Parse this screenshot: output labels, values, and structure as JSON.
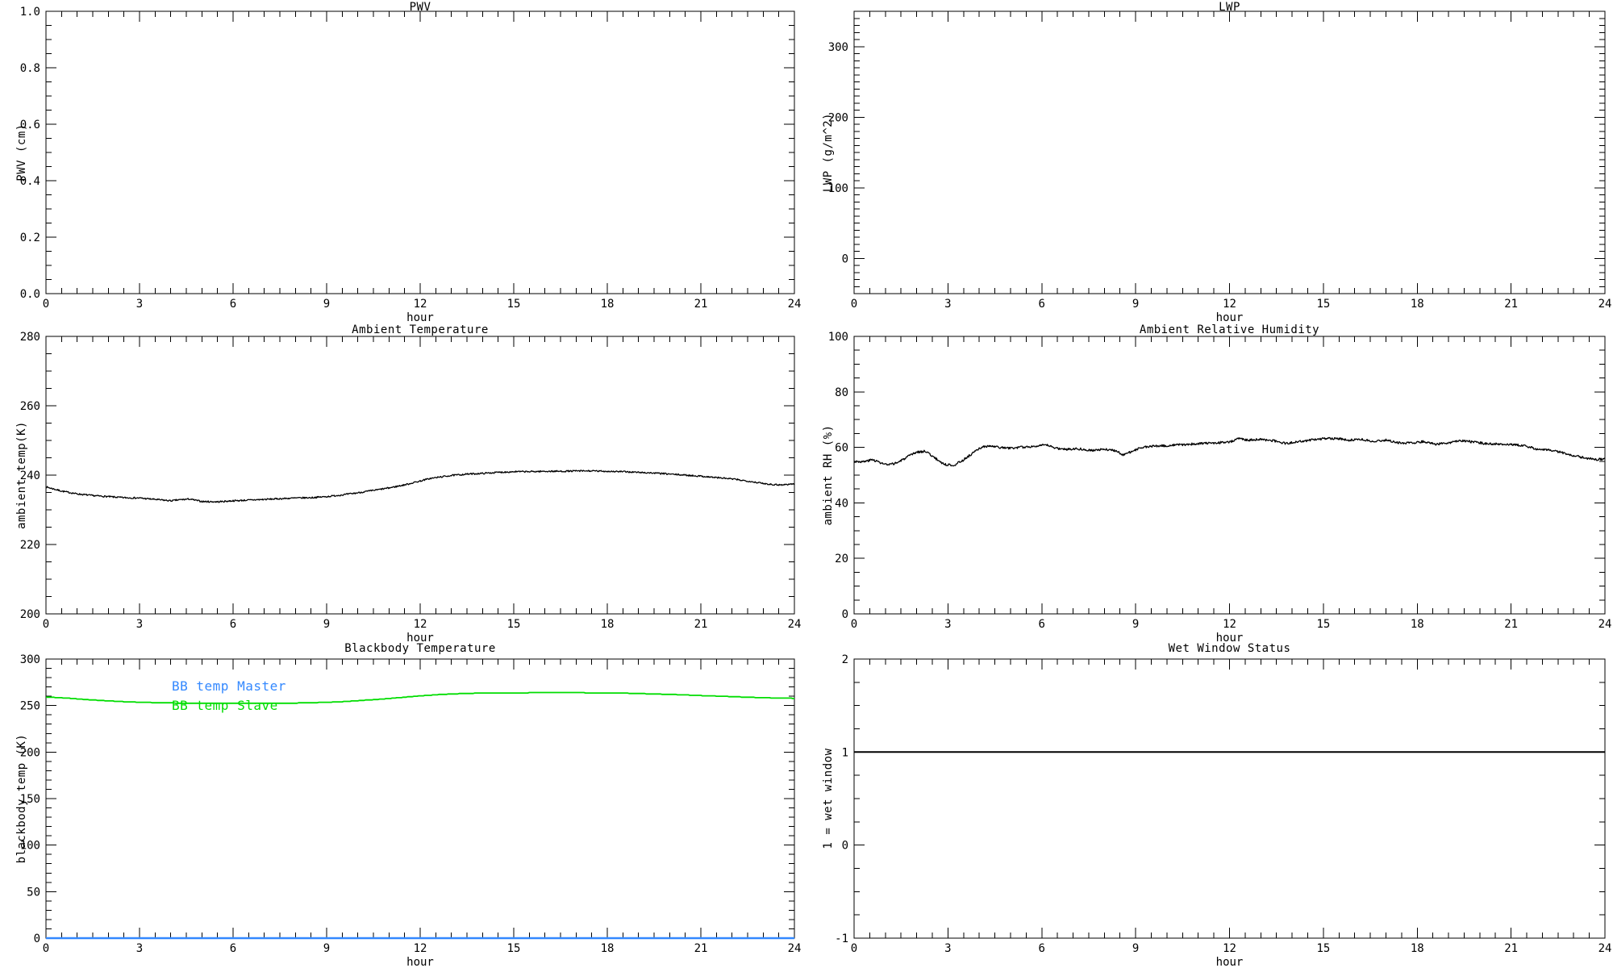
{
  "page": {
    "background": "#ffffff",
    "axis_color": "#000000"
  },
  "chart_data": [
    {
      "id": "pwv",
      "type": "line",
      "title": "PWV",
      "xlabel": "hour",
      "ylabel": "PWV (cm)",
      "xlim": [
        0,
        24
      ],
      "xticks": [
        0,
        3,
        6,
        9,
        12,
        15,
        18,
        21,
        24
      ],
      "x_minor": 0.5,
      "ylim": [
        0,
        1
      ],
      "yticks": [
        {
          "v": 0.0,
          "label": "0.0"
        },
        {
          "v": 0.2,
          "label": "0.2"
        },
        {
          "v": 0.4,
          "label": "0.4"
        },
        {
          "v": 0.6,
          "label": "0.6"
        },
        {
          "v": 0.8,
          "label": "0.8"
        },
        {
          "v": 1.0,
          "label": "1.0"
        }
      ],
      "y_minor": 0.05,
      "grid": false,
      "series": []
    },
    {
      "id": "lwp",
      "type": "line",
      "title": "LWP",
      "xlabel": "hour",
      "ylabel": "LWP (g/m^2)",
      "xlim": [
        0,
        24
      ],
      "xticks": [
        0,
        3,
        6,
        9,
        12,
        15,
        18,
        21,
        24
      ],
      "x_minor": 0.5,
      "ylim": [
        -50,
        350
      ],
      "yticks": [
        {
          "v": 0,
          "label": "0"
        },
        {
          "v": 100,
          "label": "100"
        },
        {
          "v": 200,
          "label": "200"
        },
        {
          "v": 300,
          "label": "300"
        }
      ],
      "y_minor": 10,
      "grid": false,
      "series": []
    },
    {
      "id": "ambient-temperature",
      "type": "line",
      "title": "Ambient Temperature",
      "xlabel": "hour",
      "ylabel": "ambient temp(K)",
      "xlim": [
        0,
        24
      ],
      "xticks": [
        0,
        3,
        6,
        9,
        12,
        15,
        18,
        21,
        24
      ],
      "x_minor": 0.5,
      "ylim": [
        200,
        280
      ],
      "yticks": [
        {
          "v": 200,
          "label": "200"
        },
        {
          "v": 220,
          "label": "220"
        },
        {
          "v": 240,
          "label": "240"
        },
        {
          "v": 260,
          "label": "260"
        },
        {
          "v": 280,
          "label": "280"
        }
      ],
      "y_minor": 5,
      "grid": false,
      "series": [
        {
          "name": "ambient temperature",
          "color": "#000000",
          "width": 1.3,
          "noise": 0.22,
          "seed": 7,
          "sample_step": 0.02,
          "x": [
            0,
            0.5,
            1,
            1.5,
            2,
            2.5,
            3,
            3.5,
            4,
            4.3,
            4.6,
            5,
            5.5,
            6,
            6.5,
            7,
            7.5,
            8,
            8.5,
            9,
            9.5,
            10,
            10.5,
            11,
            11.5,
            12,
            12.3,
            12.6,
            13,
            13.5,
            14,
            14.5,
            15,
            15.5,
            16,
            16.5,
            17,
            17.5,
            18,
            18.5,
            19,
            19.5,
            20,
            20.5,
            21,
            21.5,
            22,
            22.5,
            23,
            23.3,
            23.6,
            24
          ],
          "y": [
            236.6,
            235.4,
            234.6,
            234.1,
            233.8,
            233.5,
            233.4,
            233.0,
            232.6,
            232.9,
            233.1,
            232.4,
            232.3,
            232.6,
            232.8,
            233.0,
            233.2,
            233.4,
            233.5,
            233.8,
            234.3,
            234.9,
            235.6,
            236.3,
            237.2,
            238.3,
            239.0,
            239.4,
            239.9,
            240.3,
            240.5,
            240.8,
            241.0,
            241.0,
            241.1,
            241.1,
            241.2,
            241.2,
            241.1,
            241.0,
            240.8,
            240.6,
            240.3,
            240.0,
            239.7,
            239.3,
            238.9,
            238.3,
            237.6,
            237.3,
            237.2,
            237.5
          ]
        }
      ]
    },
    {
      "id": "ambient-relative-humidity",
      "type": "line",
      "title": "Ambient Relative Humidity",
      "xlabel": "hour",
      "ylabel": "ambient RH (%)",
      "xlim": [
        0,
        24
      ],
      "xticks": [
        0,
        3,
        6,
        9,
        12,
        15,
        18,
        21,
        24
      ],
      "x_minor": 0.5,
      "ylim": [
        0,
        100
      ],
      "yticks": [
        {
          "v": 0,
          "label": "0"
        },
        {
          "v": 20,
          "label": "20"
        },
        {
          "v": 40,
          "label": "40"
        },
        {
          "v": 60,
          "label": "60"
        },
        {
          "v": 80,
          "label": "80"
        },
        {
          "v": 100,
          "label": "100"
        }
      ],
      "y_minor": 5,
      "grid": false,
      "series": [
        {
          "name": "ambient relative humidity",
          "color": "#000000",
          "width": 1.3,
          "noise": 0.42,
          "seed": 3,
          "sample_step": 0.02,
          "x": [
            0,
            0.3,
            0.6,
            0.9,
            1.1,
            1.4,
            1.7,
            2.0,
            2.3,
            2.6,
            2.9,
            3.2,
            3.5,
            3.8,
            4.1,
            4.4,
            4.7,
            5.0,
            5.3,
            5.6,
            5.9,
            6.2,
            6.5,
            6.8,
            7.1,
            7.4,
            7.7,
            8.0,
            8.3,
            8.6,
            8.9,
            9.2,
            9.5,
            10,
            10.5,
            11,
            11.5,
            12,
            12.3,
            12.6,
            13,
            13.4,
            13.8,
            14.2,
            14.6,
            15,
            15.4,
            15.8,
            16.2,
            16.6,
            17,
            17.4,
            17.8,
            18.2,
            18.6,
            19,
            19.4,
            19.8,
            20.2,
            20.6,
            21,
            21.4,
            21.8,
            22.2,
            22.6,
            23,
            23.4,
            23.7,
            24
          ],
          "y": [
            55.0,
            54.8,
            55.6,
            54.2,
            53.6,
            54.6,
            56.5,
            58.3,
            58.6,
            56.0,
            53.8,
            53.6,
            55.5,
            58.0,
            60.2,
            60.4,
            59.9,
            59.7,
            60.0,
            60.2,
            60.7,
            60.7,
            59.6,
            59.3,
            59.6,
            59.2,
            58.9,
            59.3,
            59.0,
            57.4,
            58.6,
            60.0,
            60.4,
            60.6,
            61.0,
            61.3,
            61.6,
            61.9,
            63.3,
            62.6,
            62.9,
            62.4,
            61.4,
            62.0,
            62.7,
            63.1,
            63.2,
            62.6,
            63.0,
            62.2,
            62.6,
            61.7,
            61.5,
            62.1,
            61.1,
            61.6,
            62.4,
            61.9,
            61.4,
            61.2,
            61.0,
            60.7,
            59.5,
            59.0,
            58.2,
            57.0,
            56.2,
            55.6,
            55.9
          ]
        }
      ]
    },
    {
      "id": "blackbody-temperature",
      "type": "line",
      "title": "Blackbody Temperature",
      "xlabel": "hour",
      "ylabel": "blackbody temp (K)",
      "xlim": [
        0,
        24
      ],
      "xticks": [
        0,
        3,
        6,
        9,
        12,
        15,
        18,
        21,
        24
      ],
      "x_minor": 0.5,
      "ylim": [
        0,
        300
      ],
      "yticks": [
        {
          "v": 0,
          "label": "0"
        },
        {
          "v": 50,
          "label": "50"
        },
        {
          "v": 100,
          "label": "100"
        },
        {
          "v": 150,
          "label": "150"
        },
        {
          "v": 200,
          "label": "200"
        },
        {
          "v": 250,
          "label": "250"
        },
        {
          "v": 300,
          "label": "300"
        }
      ],
      "y_minor": 10,
      "grid": false,
      "legend": [
        {
          "label": "BB temp Master",
          "color": "#3388ff"
        },
        {
          "label": "BB temp Slave",
          "color": "#00dd00"
        }
      ],
      "series": [
        {
          "name": "BB temp Master",
          "color": "#3388ff",
          "width": 2.5,
          "x": [
            0,
            24
          ],
          "y": [
            0,
            0
          ]
        },
        {
          "name": "BB temp Slave",
          "color": "#00dd00",
          "width": 1.8,
          "quantize": 0.5,
          "sample_step": 0.05,
          "x": [
            0,
            0.5,
            1,
            1.5,
            2,
            2.5,
            3,
            3.5,
            4,
            4.5,
            5,
            5.5,
            6,
            6.5,
            7,
            7.5,
            8,
            8.5,
            9,
            9.5,
            10,
            10.5,
            11,
            11.5,
            12,
            12.5,
            13,
            13.5,
            14,
            14.5,
            15,
            16,
            17,
            17.5,
            18,
            18.5,
            19,
            19.5,
            20,
            20.5,
            21,
            21.5,
            22,
            22.5,
            23,
            23.5,
            24
          ],
          "y": [
            259.2,
            258.3,
            257.2,
            256.0,
            255.0,
            254.2,
            253.6,
            253.1,
            252.8,
            252.6,
            252.4,
            252.3,
            252.3,
            252.3,
            252.4,
            252.5,
            252.7,
            253.0,
            253.5,
            254.2,
            255.2,
            256.3,
            257.6,
            259.0,
            260.4,
            261.6,
            262.5,
            263.1,
            263.4,
            263.6,
            263.7,
            263.8,
            263.8,
            263.7,
            263.6,
            263.4,
            263.0,
            262.5,
            262.0,
            261.4,
            260.8,
            260.2,
            259.6,
            259.0,
            258.5,
            258.0,
            257.7
          ]
        }
      ]
    },
    {
      "id": "wet-window-status",
      "type": "line",
      "title": "Wet Window Status",
      "xlabel": "hour",
      "ylabel": "1 = wet window",
      "xlim": [
        0,
        24
      ],
      "xticks": [
        0,
        3,
        6,
        9,
        12,
        15,
        18,
        21,
        24
      ],
      "x_minor": 0.5,
      "ylim": [
        -1,
        2
      ],
      "yticks": [
        {
          "v": -1,
          "label": "-1"
        },
        {
          "v": 0,
          "label": "0"
        },
        {
          "v": 1,
          "label": "1"
        },
        {
          "v": 2,
          "label": "2"
        }
      ],
      "y_minor": 0.25,
      "grid": false,
      "series": [
        {
          "name": "wet window status",
          "color": "#000000",
          "width": 2,
          "x": [
            0,
            24
          ],
          "y": [
            1,
            1
          ]
        }
      ]
    }
  ]
}
